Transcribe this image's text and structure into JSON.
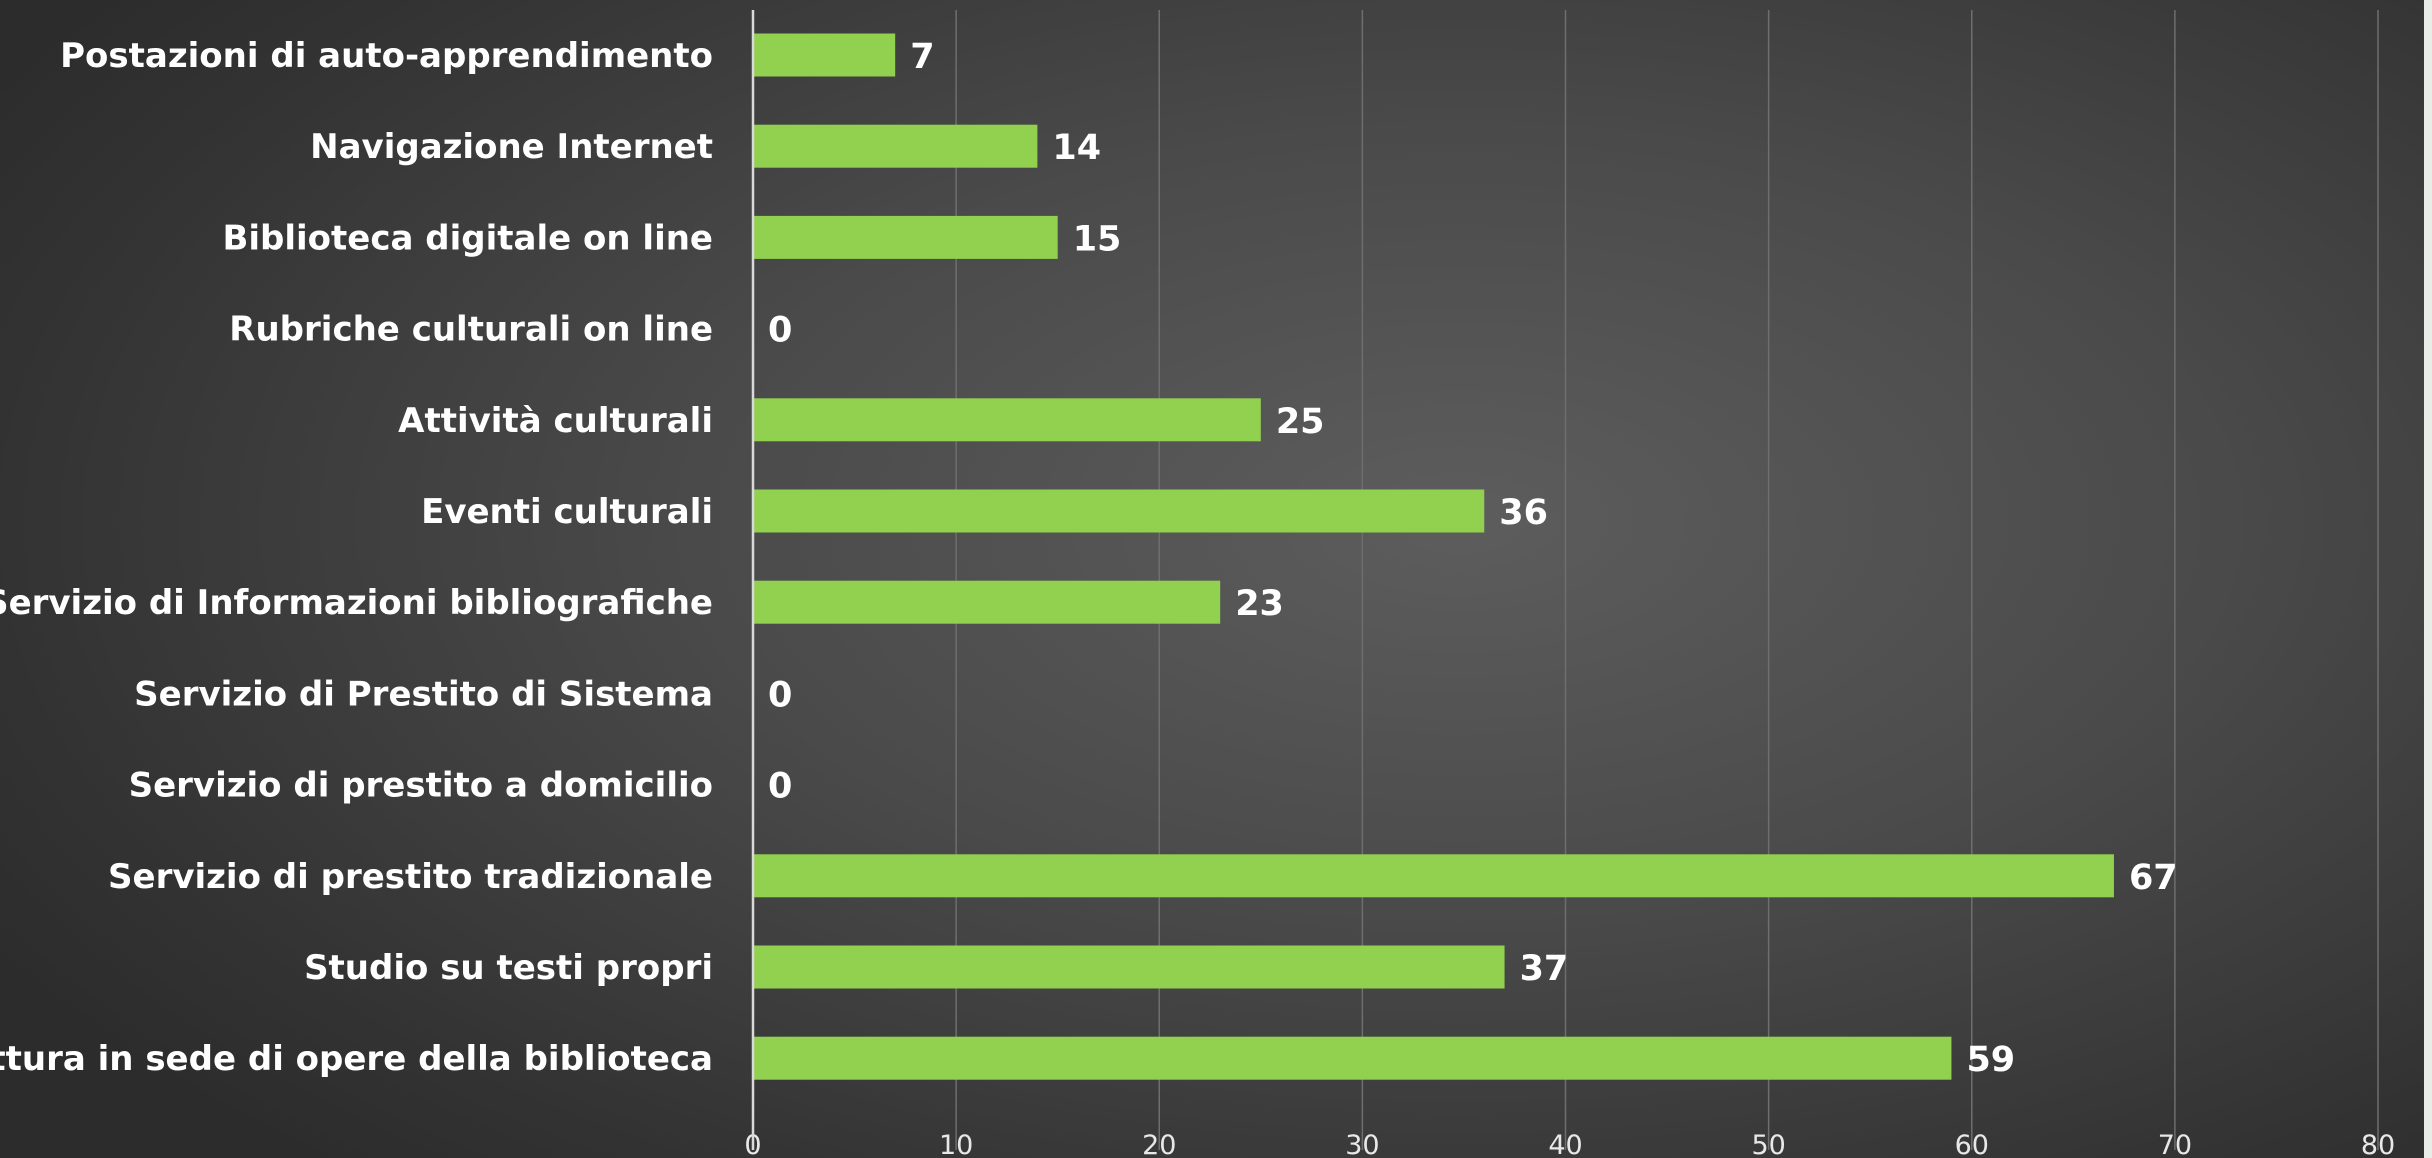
{
  "chart_data": {
    "type": "bar",
    "orientation": "horizontal",
    "categories": [
      "Postazioni di auto-apprendimento",
      "Navigazione Internet",
      "Biblioteca digitale on line",
      "Rubriche culturali on line",
      "Attività culturali",
      "Eventi culturali",
      "Servizio di Informazioni bibliografiche",
      "Servizio di Prestito di Sistema",
      "Servizio di prestito a domicilio",
      "Servizio di prestito tradizionale",
      "Studio su testi propri",
      "Lettura in sede di opere della biblioteca"
    ],
    "values": [
      7,
      14,
      15,
      0,
      25,
      36,
      23,
      0,
      0,
      67,
      37,
      59
    ],
    "x_ticks": [
      "0",
      "10",
      "20",
      "30",
      "40",
      "50",
      "60",
      "70",
      "80"
    ],
    "xlim": [
      0,
      80
    ],
    "grid": true,
    "legend": false,
    "colors": {
      "bar": "#92d050",
      "text": "#ffffff",
      "grid": "#6e6e6e"
    }
  }
}
